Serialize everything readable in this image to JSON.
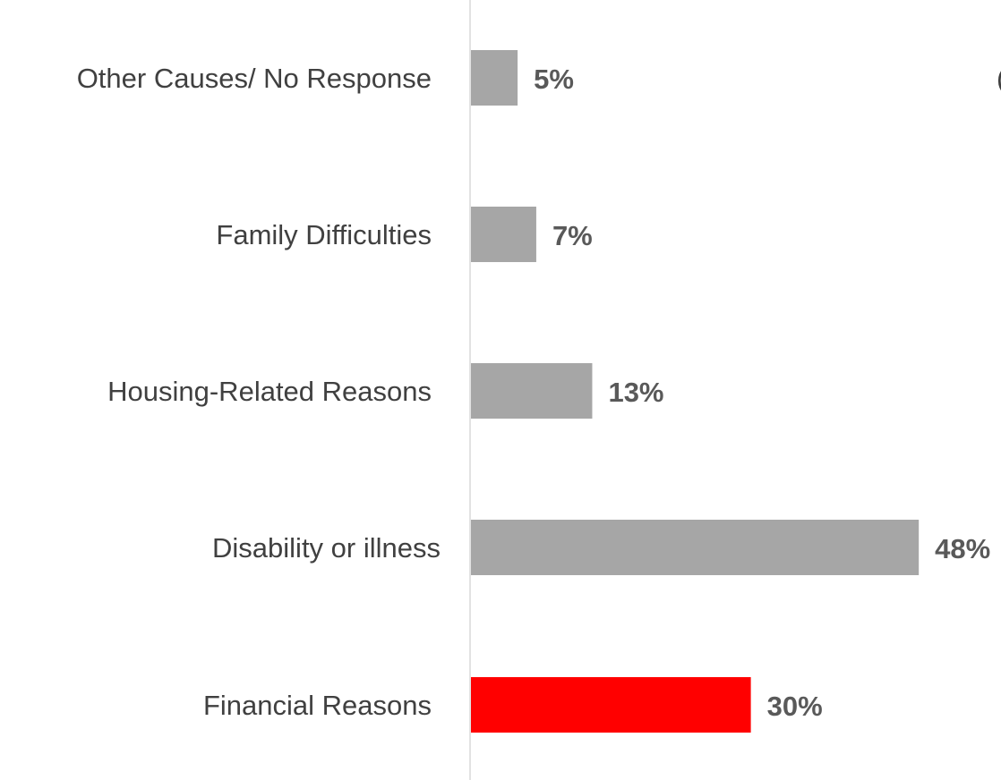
{
  "chart_data": {
    "type": "bar",
    "orientation": "horizontal",
    "categories": [
      "Other Causes/ No Response",
      "Family Difficulties",
      "Housing-Related Reasons",
      "Disability or illness",
      "Financial Reasons"
    ],
    "values": [
      5,
      7,
      13,
      48,
      30
    ],
    "value_labels": [
      "5%",
      "7%",
      "13%",
      "48%",
      "30%"
    ],
    "bar_colors": [
      "#a6a6a6",
      "#a6a6a6",
      "#a6a6a6",
      "#a6a6a6",
      "#ff0000"
    ],
    "title": "",
    "xlabel": "",
    "ylabel": "",
    "xlim": [
      0,
      50
    ],
    "grid": false,
    "legend": "none",
    "cut_off_text": "("
  },
  "colors": {
    "default_bar": "#a6a6a6",
    "highlight_bar": "#ff0000",
    "axis_line": "#d9d9d9",
    "category_text": "#404040",
    "value_text": "#595959"
  }
}
